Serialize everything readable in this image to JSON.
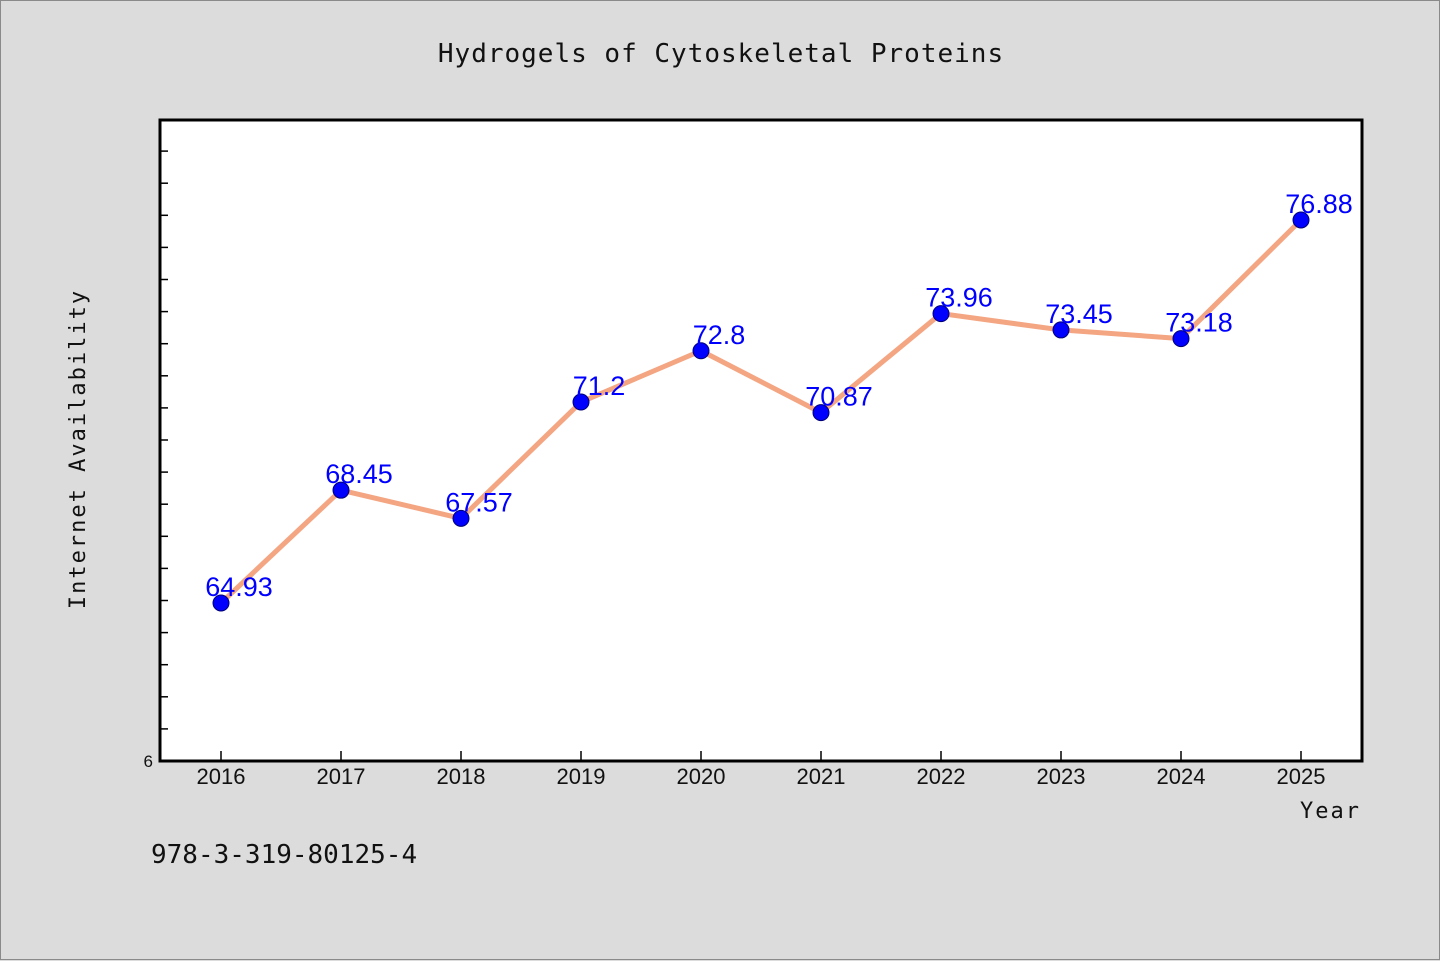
{
  "chart_data": {
    "type": "line",
    "title": "Hydrogels of Cytoskeletal Proteins",
    "xlabel": "Year",
    "ylabel": "Internet Availability",
    "categories": [
      "2016",
      "2017",
      "2018",
      "2019",
      "2020",
      "2021",
      "2022",
      "2023",
      "2024",
      "2025"
    ],
    "series": [
      {
        "values": [
          64.93,
          68.45,
          67.57,
          71.2,
          72.8,
          70.87,
          73.96,
          73.45,
          73.18,
          76.88
        ],
        "labels": [
          "64.93",
          "68.45",
          "67.57",
          "71.2",
          "72.8",
          "70.87",
          "73.96",
          "73.45",
          "73.18",
          "76.88"
        ]
      }
    ],
    "ylim": [
      60,
      80
    ],
    "y_tick_labels": [
      "6"
    ],
    "grid": false,
    "line_color": "#f4a582",
    "marker_color": "#0000ff",
    "label_color": "#0000ff"
  },
  "footer_text": "978-3-319-80125-4"
}
